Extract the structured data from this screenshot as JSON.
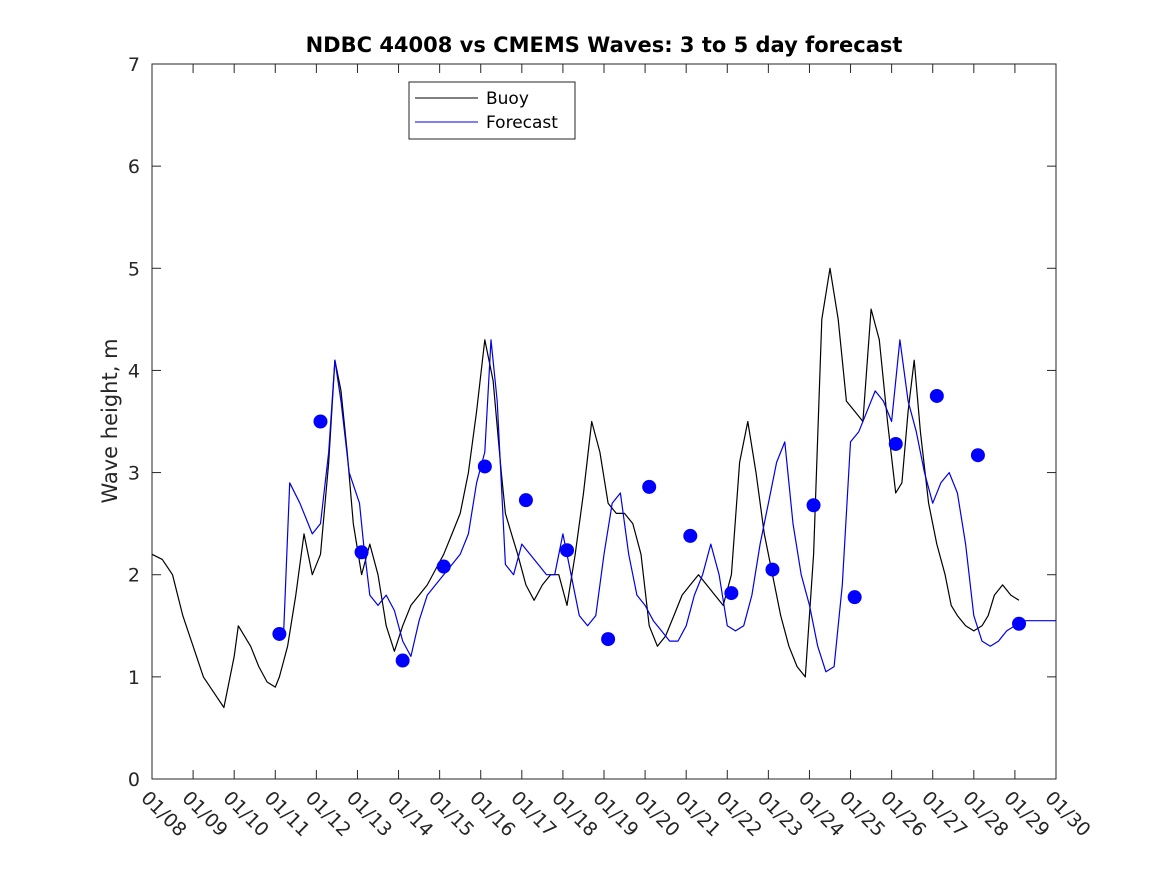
{
  "chart_data": {
    "type": "line",
    "title": "NDBC 44008 vs CMEMS Waves: 3 to 5 day forecast",
    "xlabel": "",
    "ylabel": "Wave height, m",
    "xlim": [
      0,
      22
    ],
    "ylim": [
      0,
      7
    ],
    "x_tick_labels": [
      "01/08",
      "01/09",
      "01/10",
      "01/11",
      "01/12",
      "01/13",
      "01/14",
      "01/15",
      "01/16",
      "01/17",
      "01/18",
      "01/19",
      "01/20",
      "01/21",
      "01/22",
      "01/23",
      "01/24",
      "01/25",
      "01/26",
      "01/27",
      "01/28",
      "01/29",
      "01/30"
    ],
    "y_ticks": [
      0,
      1,
      2,
      3,
      4,
      5,
      6,
      7
    ],
    "x_units": "days since 01/08",
    "legend": {
      "position": "top-center",
      "entries": [
        "Buoy",
        "Forecast"
      ]
    },
    "series": [
      {
        "name": "Buoy",
        "color": "#000000",
        "x": [
          0,
          0.25,
          0.5,
          0.75,
          1,
          1.25,
          1.5,
          1.75,
          2,
          2.1,
          2.4,
          2.6,
          2.8,
          3,
          3.1,
          3.3,
          3.5,
          3.7,
          3.9,
          4.1,
          4.3,
          4.45,
          4.6,
          4.75,
          4.9,
          5.1,
          5.3,
          5.5,
          5.7,
          5.9,
          6.1,
          6.3,
          6.5,
          6.7,
          6.9,
          7.1,
          7.3,
          7.5,
          7.7,
          7.9,
          8.1,
          8.3,
          8.5,
          8.6,
          8.75,
          8.9,
          9.1,
          9.3,
          9.5,
          9.7,
          9.9,
          10.1,
          10.3,
          10.5,
          10.7,
          10.9,
          11.1,
          11.3,
          11.5,
          11.7,
          11.9,
          12.1,
          12.3,
          12.5,
          12.7,
          12.9,
          13.1,
          13.3,
          13.5,
          13.7,
          13.9,
          14.1,
          14.3,
          14.5,
          14.7,
          14.9,
          15.1,
          15.3,
          15.5,
          15.7,
          15.9,
          16.1,
          16.3,
          16.5,
          16.7,
          16.9,
          17.1,
          17.3,
          17.5,
          17.7,
          17.9,
          18.1,
          18.25,
          18.4,
          18.55,
          18.7,
          18.9,
          19.1,
          19.3,
          19.45,
          19.6,
          19.8,
          20.0,
          20.2,
          20.35,
          20.5,
          20.7,
          20.9,
          21.1
        ],
        "y": [
          2.2,
          2.15,
          2.0,
          1.6,
          1.3,
          1.0,
          0.85,
          0.7,
          1.2,
          1.5,
          1.3,
          1.1,
          0.95,
          0.9,
          1.0,
          1.3,
          1.8,
          2.4,
          2.0,
          2.2,
          3.1,
          4.1,
          3.8,
          3.2,
          2.5,
          2.0,
          2.3,
          2.0,
          1.5,
          1.25,
          1.5,
          1.7,
          1.8,
          1.9,
          2.05,
          2.2,
          2.4,
          2.6,
          3.0,
          3.6,
          4.3,
          3.9,
          3.0,
          2.6,
          2.4,
          2.2,
          1.9,
          1.75,
          1.9,
          2.0,
          2.0,
          1.7,
          2.2,
          2.8,
          3.5,
          3.2,
          2.7,
          2.6,
          2.6,
          2.5,
          2.2,
          1.5,
          1.3,
          1.4,
          1.6,
          1.8,
          1.9,
          2.0,
          1.9,
          1.8,
          1.7,
          2.0,
          3.1,
          3.5,
          3.0,
          2.4,
          2.0,
          1.6,
          1.3,
          1.1,
          1.0,
          2.2,
          4.5,
          5.0,
          4.5,
          3.7,
          3.6,
          3.5,
          4.6,
          4.3,
          3.5,
          2.8,
          2.9,
          3.6,
          4.1,
          3.4,
          2.7,
          2.3,
          2.0,
          1.7,
          1.6,
          1.5,
          1.45,
          1.5,
          1.6,
          1.8,
          1.9,
          1.8,
          1.75
        ]
      },
      {
        "name": "Forecast",
        "color": "#0000e6",
        "x": [
          3.2,
          3.35,
          3.6,
          3.9,
          4.1,
          4.3,
          4.45,
          4.6,
          4.8,
          5.05,
          5.15,
          5.3,
          5.5,
          5.7,
          5.9,
          6.1,
          6.3,
          6.5,
          6.7,
          6.9,
          7.1,
          7.3,
          7.5,
          7.7,
          7.9,
          8.1,
          8.25,
          8.4,
          8.6,
          8.8,
          9.0,
          9.2,
          9.4,
          9.6,
          9.8,
          10.0,
          10.2,
          10.4,
          10.6,
          10.8,
          11.0,
          11.2,
          11.4,
          11.6,
          11.8,
          12.0,
          12.2,
          12.4,
          12.6,
          12.8,
          13.0,
          13.2,
          13.4,
          13.6,
          13.8,
          14.0,
          14.2,
          14.4,
          14.6,
          14.8,
          15.0,
          15.2,
          15.4,
          15.6,
          15.8,
          16.0,
          16.2,
          16.4,
          16.6,
          16.8,
          17.0,
          17.2,
          17.4,
          17.6,
          17.8,
          18.0,
          18.2,
          18.4,
          18.6,
          18.8,
          19.0,
          19.2,
          19.4,
          19.6,
          19.8,
          20.0,
          20.2,
          20.4,
          20.6,
          20.8,
          21.0,
          21.2,
          21.4,
          21.6,
          21.8,
          22.0
        ],
        "y": [
          1.4,
          2.9,
          2.7,
          2.4,
          2.5,
          3.2,
          4.1,
          3.7,
          3.0,
          2.7,
          2.3,
          1.8,
          1.7,
          1.8,
          1.65,
          1.35,
          1.2,
          1.55,
          1.8,
          1.9,
          2.0,
          2.1,
          2.2,
          2.4,
          2.9,
          3.2,
          4.3,
          3.7,
          2.1,
          2.0,
          2.3,
          2.2,
          2.1,
          2.0,
          2.0,
          2.4,
          2.0,
          1.6,
          1.5,
          1.6,
          2.2,
          2.7,
          2.8,
          2.2,
          1.8,
          1.7,
          1.55,
          1.45,
          1.35,
          1.35,
          1.5,
          1.8,
          2.0,
          2.3,
          2.0,
          1.5,
          1.45,
          1.5,
          1.8,
          2.3,
          2.7,
          3.1,
          3.3,
          2.5,
          2.0,
          1.7,
          1.3,
          1.05,
          1.1,
          1.9,
          3.3,
          3.4,
          3.6,
          3.8,
          3.7,
          3.5,
          4.3,
          3.7,
          3.4,
          3.0,
          2.7,
          2.9,
          3.0,
          2.8,
          2.3,
          1.6,
          1.35,
          1.3,
          1.35,
          1.45,
          1.5,
          1.55,
          1.55,
          1.55,
          1.55,
          1.55
        ]
      },
      {
        "name": "Forecast points",
        "color": "#0000ff",
        "marker": "circle",
        "x": [
          3.1,
          4.1,
          5.1,
          6.1,
          7.1,
          8.1,
          9.1,
          10.1,
          11.1,
          12.1,
          13.1,
          14.1,
          15.1,
          16.1,
          17.1,
          18.1,
          19.1,
          20.1,
          21.1
        ],
        "y": [
          1.42,
          3.5,
          2.22,
          1.16,
          2.08,
          3.06,
          2.73,
          2.24,
          1.37,
          2.86,
          2.38,
          1.82,
          2.05,
          2.68,
          1.78,
          3.28,
          3.75,
          3.17,
          1.52
        ]
      }
    ]
  }
}
